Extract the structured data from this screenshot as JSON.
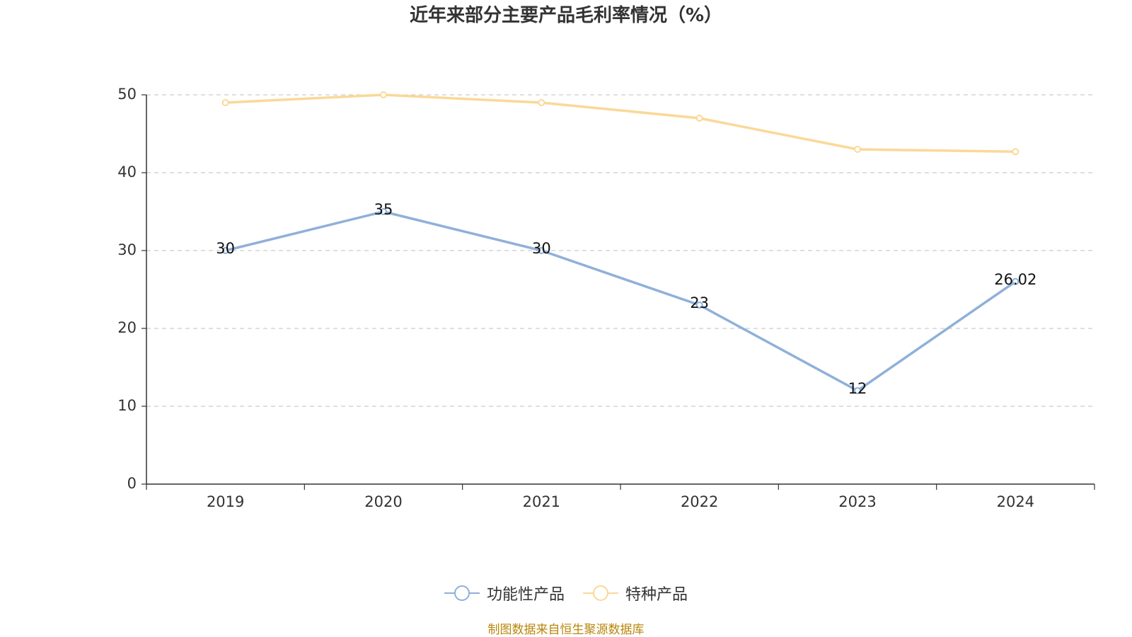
{
  "chart_data": {
    "type": "line",
    "title": "近年来部分主要产品毛利率情况（%）",
    "categories": [
      "2019",
      "2020",
      "2021",
      "2022",
      "2023",
      "2024"
    ],
    "series": [
      {
        "name": "功能性产品",
        "color": "#8fb0d9",
        "values": [
          30,
          35,
          30,
          23,
          12,
          26.02
        ],
        "data_labels": [
          "30",
          "35",
          "30",
          "23",
          "12",
          "26.02"
        ],
        "show_labels": true
      },
      {
        "name": "特种产品",
        "color": "#fbd898",
        "values": [
          49,
          50,
          49,
          47,
          43,
          42.7
        ],
        "show_labels": false
      }
    ],
    "y_ticks": [
      0,
      10,
      20,
      30,
      40,
      50
    ],
    "ylim": [
      0,
      50
    ],
    "xlabel": "",
    "ylabel": "",
    "grid": true,
    "legend_position": "bottom-center"
  },
  "source_note": "制图数据来自恒生聚源数据库"
}
